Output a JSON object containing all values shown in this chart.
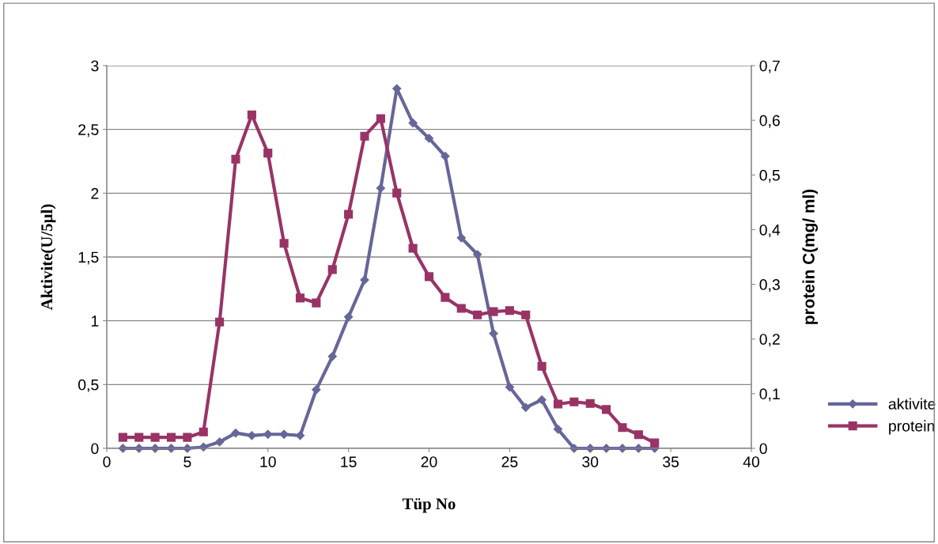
{
  "chart_data": {
    "type": "line",
    "xlabel": "Tüp No",
    "ylabel": "Aktivite(U/5µl)",
    "y2label": "protein C(mg/ ml)",
    "x": [
      1,
      2,
      3,
      4,
      5,
      6,
      7,
      8,
      9,
      10,
      11,
      12,
      13,
      14,
      15,
      16,
      17,
      18,
      19,
      20,
      21,
      22,
      23,
      24,
      25,
      26,
      27,
      28,
      29,
      30,
      31,
      32,
      33,
      34
    ],
    "series": [
      {
        "name": "aktivite",
        "color": "#666699",
        "marker": "diamond",
        "values": [
          0,
          0,
          0,
          0,
          0,
          0.01,
          0.05,
          0.12,
          0.1,
          0.11,
          0.11,
          0.1,
          0.46,
          0.72,
          1.03,
          1.32,
          2.04,
          2.82,
          2.55,
          2.43,
          2.29,
          1.65,
          1.52,
          0.9,
          0.48,
          0.32,
          0.38,
          0.15,
          0,
          0,
          0,
          0,
          0,
          0
        ]
      },
      {
        "name": "protein",
        "color": "#993366",
        "marker": "square",
        "axis": "y2",
        "values": [
          0.02,
          0.02,
          0.02,
          0.02,
          0.02,
          0.03,
          0.231,
          0.529,
          0.61,
          0.54,
          0.375,
          0.275,
          0.266,
          0.327,
          0.428,
          0.571,
          0.603,
          0.467,
          0.366,
          0.314,
          0.276,
          0.256,
          0.244,
          0.25,
          0.252,
          0.244,
          0.15,
          0.081,
          0.085,
          0.082,
          0.071,
          0.038,
          0.025,
          0.01
        ]
      }
    ],
    "xlim": [
      0,
      40
    ],
    "xticks": [
      0,
      5,
      10,
      15,
      20,
      25,
      30,
      35,
      40
    ],
    "ylim": [
      0,
      3
    ],
    "yticks": [
      0,
      {
        "value": 0.5,
        "label": "0,5"
      },
      1,
      {
        "value": 1.5,
        "label": "1,5"
      },
      2,
      {
        "value": 2.5,
        "label": "2,5"
      },
      3
    ],
    "y2lim": [
      0,
      0.7
    ],
    "y2ticks": [
      0,
      {
        "value": 0.1,
        "label": "0,1"
      },
      {
        "value": 0.2,
        "label": "0,2"
      },
      {
        "value": 0.3,
        "label": "0,3"
      },
      {
        "value": 0.4,
        "label": "0,4"
      },
      {
        "value": 0.5,
        "label": "0,5"
      },
      {
        "value": 0.6,
        "label": "0,6"
      },
      {
        "value": 0.7,
        "label": "0,7"
      }
    ],
    "grid": "y",
    "legend": "right"
  }
}
